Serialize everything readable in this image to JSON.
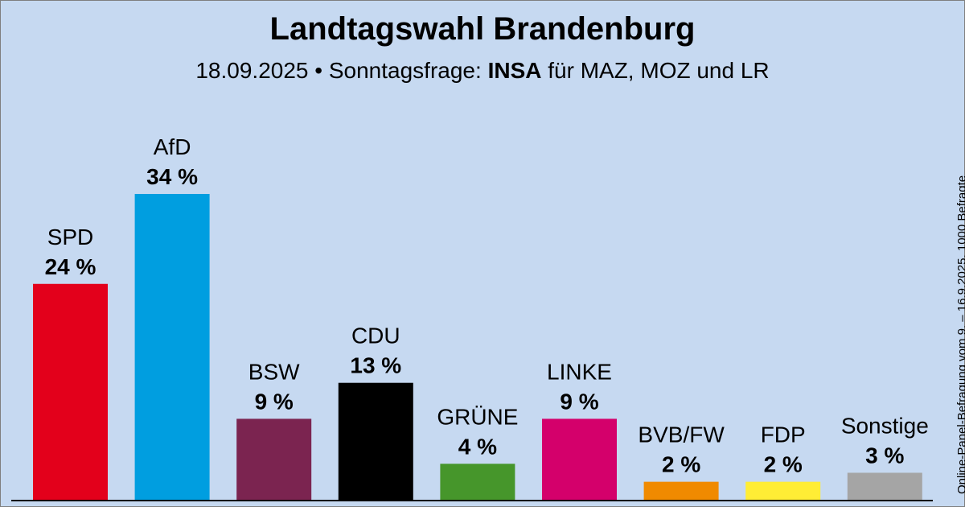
{
  "header": {
    "title": "Landtagswahl Brandenburg",
    "date": "18.09.2025",
    "separator": "•",
    "label": "Sonntagsfrage:",
    "institute": "INSA",
    "client": "für MAZ, MOZ und LR"
  },
  "source_note": "Online-Panel-Befragung vom 9. – 16.9.2025, 1000 Befragte",
  "chart_data": {
    "type": "bar",
    "title": "Landtagswahl Brandenburg",
    "unit": "%",
    "ylim": [
      0,
      34
    ],
    "grid": false,
    "categories": [
      "SPD",
      "AfD",
      "BSW",
      "CDU",
      "GRÜNE",
      "LINKE",
      "BVB/FW",
      "FDP",
      "Sonstige"
    ],
    "values": [
      24,
      34,
      9,
      13,
      4,
      9,
      2,
      2,
      3
    ],
    "value_labels": [
      "24 %",
      "34 %",
      "9 %",
      "13 %",
      "4 %",
      "9 %",
      "2 %",
      "2 %",
      "3 %"
    ],
    "colors": [
      "#e3001b",
      "#009ee0",
      "#7b2450",
      "#000000",
      "#46962b",
      "#d4006b",
      "#f08a00",
      "#ffed35",
      "#a5a5a5"
    ]
  }
}
